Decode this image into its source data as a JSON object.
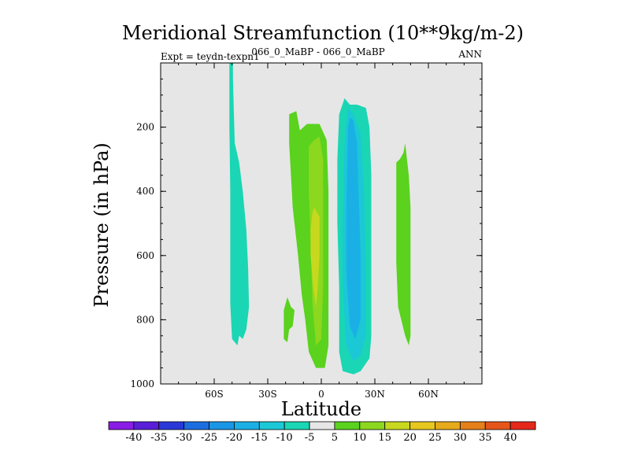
{
  "chart_data": {
    "type": "contour",
    "title": "Meridional Streamfunction (10**9kg/m-2)",
    "subtitle_left": "Expt = teydn-texpn1",
    "subtitle_center": "066_0_MaBP - 066_0_MaBP",
    "subtitle_right": "ANN",
    "xlabel": "Latitude",
    "ylabel": "Pressure (in hPa)",
    "xlim": [
      -90,
      90
    ],
    "ylim": [
      1000,
      0
    ],
    "x_ticks": [
      {
        "value": -60,
        "label": "60S"
      },
      {
        "value": -30,
        "label": "30S"
      },
      {
        "value": 0,
        "label": "0"
      },
      {
        "value": 30,
        "label": "30N"
      },
      {
        "value": 60,
        "label": "60N"
      }
    ],
    "y_ticks": [
      {
        "value": 200,
        "label": "200"
      },
      {
        "value": 400,
        "label": "400"
      },
      {
        "value": 600,
        "label": "600"
      },
      {
        "value": 800,
        "label": "800"
      },
      {
        "value": 1000,
        "label": "1000"
      }
    ],
    "background_color": "#e6e6e6",
    "colorbar": {
      "levels": [
        "-40",
        "-35",
        "-30",
        "-25",
        "-20",
        "-15",
        "-10",
        "-5",
        "5",
        "10",
        "15",
        "20",
        "25",
        "30",
        "35",
        "40"
      ],
      "colors": [
        "#8a1ce6",
        "#5a1ed8",
        "#2a38d8",
        "#1c6ee0",
        "#1a96e6",
        "#1ab0e6",
        "#1ac8d6",
        "#1ad6b4",
        "#e6e6e6",
        "#5ad21e",
        "#8cd81e",
        "#c8d81e",
        "#e6c81e",
        "#e6aa1a",
        "#e6801a",
        "#e6561a",
        "#e6281a"
      ]
    },
    "regions": [
      {
        "name": "cell-60s",
        "level": "-10",
        "color": "#1ad6b4",
        "points": [
          [
            -51.5,
            0
          ],
          [
            -49.5,
            0
          ],
          [
            -49.5,
            50
          ],
          [
            -49,
            150
          ],
          [
            -48.5,
            250
          ],
          [
            -46,
            310
          ],
          [
            -44,
            400
          ],
          [
            -42,
            520
          ],
          [
            -41,
            640
          ],
          [
            -40.5,
            760
          ],
          [
            -42,
            830
          ],
          [
            -44,
            860
          ],
          [
            -46,
            850
          ],
          [
            -47,
            880
          ],
          [
            -50,
            860
          ],
          [
            -51,
            750
          ],
          [
            -51,
            600
          ],
          [
            -51,
            400
          ],
          [
            -51.5,
            200
          ]
        ]
      },
      {
        "name": "cell-equator-outer",
        "level": "5",
        "color": "#5ad21e",
        "points": [
          [
            -18,
            160
          ],
          [
            -14,
            150
          ],
          [
            -12,
            210
          ],
          [
            -8,
            190
          ],
          [
            -1,
            190
          ],
          [
            3,
            240
          ],
          [
            4,
            400
          ],
          [
            4,
            600
          ],
          [
            4,
            800
          ],
          [
            4,
            880
          ],
          [
            2,
            950
          ],
          [
            -3,
            950
          ],
          [
            -7,
            900
          ],
          [
            -9,
            800
          ],
          [
            -11,
            720
          ],
          [
            -13,
            600
          ],
          [
            -16,
            450
          ],
          [
            -18,
            250
          ]
        ]
      },
      {
        "name": "cell-equator-10",
        "level": "10",
        "color": "#8cd81e",
        "points": [
          [
            -7,
            260
          ],
          [
            -4,
            240
          ],
          [
            -1,
            230
          ],
          [
            1,
            300
          ],
          [
            1,
            500
          ],
          [
            1,
            700
          ],
          [
            0,
            860
          ],
          [
            -3,
            880
          ],
          [
            -5,
            750
          ],
          [
            -6,
            550
          ],
          [
            -7,
            400
          ]
        ]
      },
      {
        "name": "cell-equator-15",
        "level": "15",
        "color": "#c8d81e",
        "points": [
          [
            -6,
            520
          ],
          [
            -5,
            470
          ],
          [
            -4,
            450
          ],
          [
            -1,
            480
          ],
          [
            -1,
            600
          ],
          [
            -2,
            700
          ],
          [
            -3,
            760
          ],
          [
            -4.5,
            700
          ],
          [
            -6,
            600
          ]
        ]
      },
      {
        "name": "cell-nh-outer",
        "level": "-10",
        "color": "#1ad6b4",
        "points": [
          [
            10,
            160
          ],
          [
            13,
            110
          ],
          [
            16,
            130
          ],
          [
            20,
            130
          ],
          [
            25,
            140
          ],
          [
            27,
            200
          ],
          [
            28,
            350
          ],
          [
            28,
            500
          ],
          [
            28,
            700
          ],
          [
            28,
            850
          ],
          [
            27,
            920
          ],
          [
            22,
            960
          ],
          [
            18,
            970
          ],
          [
            12,
            960
          ],
          [
            10,
            900
          ],
          [
            10,
            700
          ],
          [
            9,
            500
          ],
          [
            9,
            300
          ]
        ]
      },
      {
        "name": "cell-nh-15",
        "level": "-15",
        "color": "#1ac8d6",
        "points": [
          [
            13,
            250
          ],
          [
            15,
            140
          ],
          [
            18,
            160
          ],
          [
            22,
            220
          ],
          [
            24,
            400
          ],
          [
            25,
            650
          ],
          [
            25,
            850
          ],
          [
            22,
            910
          ],
          [
            18,
            930
          ],
          [
            14,
            880
          ],
          [
            12,
            700
          ],
          [
            12,
            500
          ]
        ]
      },
      {
        "name": "cell-nh-20",
        "level": "-20",
        "color": "#1ab0e6",
        "points": [
          [
            15,
            200
          ],
          [
            16,
            170
          ],
          [
            18,
            180
          ],
          [
            20,
            250
          ],
          [
            22,
            600
          ],
          [
            22,
            800
          ],
          [
            19,
            860
          ],
          [
            16,
            820
          ],
          [
            14,
            650
          ],
          [
            14,
            450
          ]
        ]
      },
      {
        "name": "cell-60n",
        "level": "5",
        "color": "#5ad21e",
        "points": [
          [
            42,
            310
          ],
          [
            44,
            300
          ],
          [
            46,
            280
          ],
          [
            47,
            250
          ],
          [
            49,
            350
          ],
          [
            50,
            450
          ],
          [
            50,
            600
          ],
          [
            50,
            750
          ],
          [
            50,
            850
          ],
          [
            49,
            880
          ],
          [
            47,
            850
          ],
          [
            43,
            760
          ],
          [
            42,
            620
          ],
          [
            42,
            450
          ]
        ]
      },
      {
        "name": "cell-small-sh",
        "level": "5",
        "color": "#5ad21e",
        "points": [
          [
            -21,
            770
          ],
          [
            -19,
            730
          ],
          [
            -17,
            760
          ],
          [
            -15,
            770
          ],
          [
            -16,
            820
          ],
          [
            -18,
            830
          ],
          [
            -19,
            870
          ],
          [
            -21,
            860
          ]
        ]
      }
    ]
  }
}
